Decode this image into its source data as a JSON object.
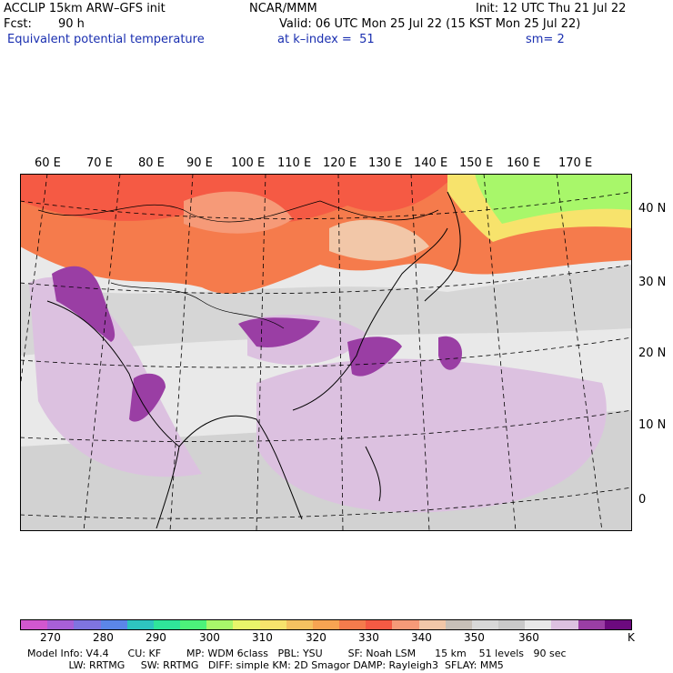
{
  "header": {
    "model": "ACCLIP 15km ARW–GFS init",
    "center": "NCAR/MMM",
    "init": "Init: 12 UTC Thu 21 Jul 22",
    "fcst_label": "Fcst:",
    "fcst_value": "90 h",
    "valid": "Valid: 06 UTC Mon 25 Jul 22 (15 KST Mon 25 Jul 22)",
    "field": "Equivalent potential temperature",
    "level": "at k–index =  51",
    "smooth": "sm= 2"
  },
  "map": {
    "lon_labels": [
      "60 E",
      "70 E",
      "80 E",
      "90 E",
      "100 E",
      "110 E",
      "120 E",
      "130 E",
      "140 E",
      "150 E",
      "160 E",
      "170 E"
    ],
    "lat_labels": [
      "40 N",
      "30 N",
      "20 N",
      "10 N",
      "0"
    ]
  },
  "colorbar": {
    "colors": [
      "#d257cf",
      "#a85fd8",
      "#7f74e0",
      "#5b86e8",
      "#2ec4c0",
      "#2fe59a",
      "#4cf27a",
      "#a8f76a",
      "#e8f66a",
      "#f7e36c",
      "#f5c260",
      "#f7a452",
      "#f57b4c",
      "#f55a44",
      "#f69a78",
      "#f2c7a8",
      "#c8c0b8",
      "#d8d8d8",
      "#c9c9c9",
      "#e8e8e8",
      "#dcc1e0",
      "#9a3ea4",
      "#6c0a7e"
    ],
    "tick_labels": [
      "270",
      "280",
      "290",
      "300",
      "310",
      "320",
      "330",
      "340",
      "350",
      "360"
    ],
    "unit": "K"
  },
  "footer": {
    "line1": "Model Info: V4.4      CU: KF        MP: WDM 6class   PBL: YSU        SF: Noah LSM      15 km    51 levels   90 sec",
    "line2": "             LW: RRTMG     SW: RRTMG   DIFF: simple KM: 2D Smagor DAMP: Rayleigh3  SFLAY: MM5"
  }
}
